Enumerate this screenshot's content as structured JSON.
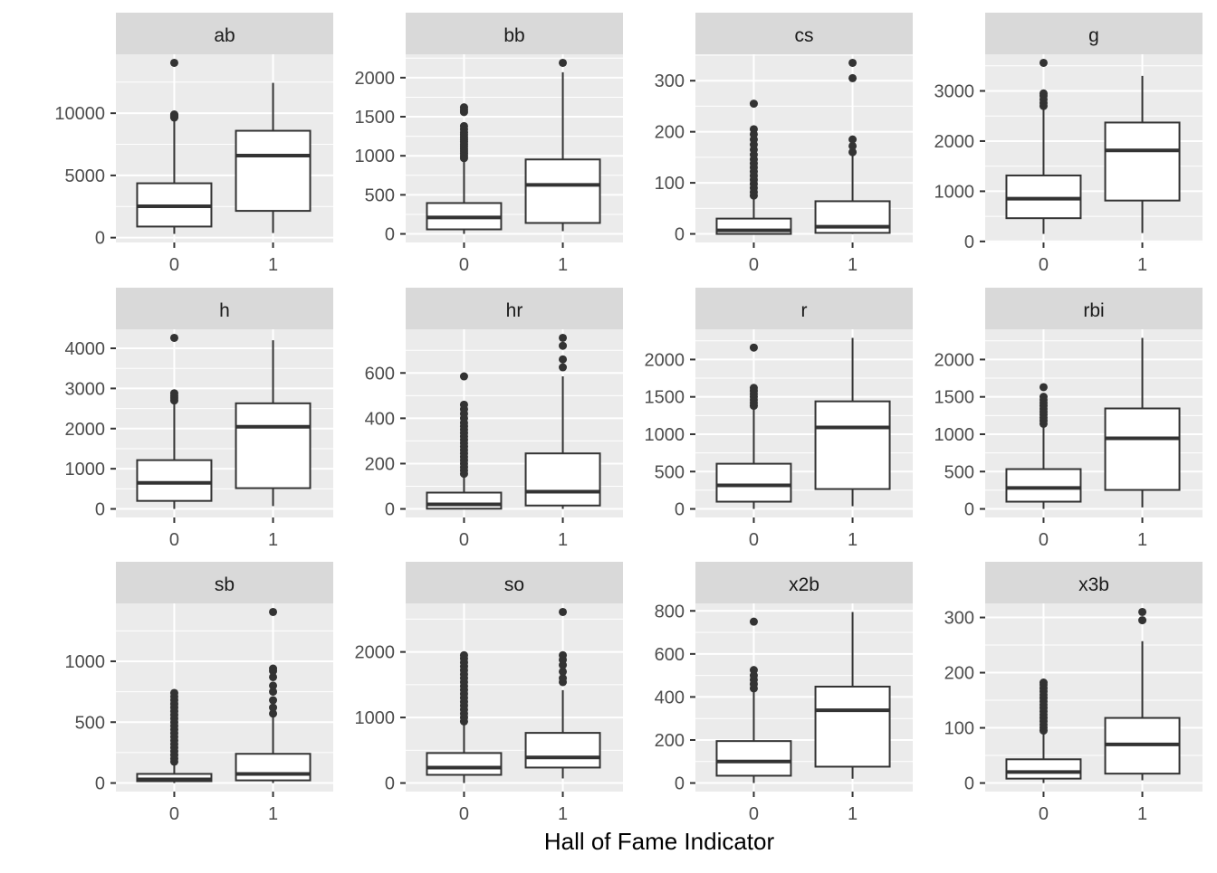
{
  "chart_data": {
    "type": "boxplot",
    "xlabel": "Hall of Fame Indicator",
    "ylabel": "",
    "categories": [
      "0",
      "1"
    ],
    "layout": "facet_wrap 3 rows x 4 columns, free y scales",
    "grid": true,
    "colors": {
      "panel": "#ebebeb",
      "strip": "#d9d9d9",
      "grid": "#ffffff",
      "box": "#333333",
      "axis_text": "#4d4d4d"
    },
    "facets": [
      {
        "name": "ab",
        "ticks": [
          0,
          5000,
          10000
        ],
        "boxes": [
          {
            "x": "0",
            "low": 300,
            "q1": 890,
            "median": 2520,
            "q3": 4370,
            "high": 9500,
            "outliers": [
              9650,
              9700,
              9750,
              9800,
              9850,
              9900,
              14050
            ]
          },
          {
            "x": "1",
            "low": 370,
            "q1": 2150,
            "median": 6590,
            "q3": 8590,
            "high": 12440,
            "outliers": []
          }
        ]
      },
      {
        "name": "bb",
        "ticks": [
          0,
          500,
          1000,
          1500,
          2000
        ],
        "boxes": [
          {
            "x": "0",
            "low": 0,
            "q1": 58,
            "median": 210,
            "q3": 395,
            "high": 960,
            "outliers": [
              970,
              1000,
              1030,
              1060,
              1090,
              1120,
              1150,
              1180,
              1210,
              1240,
              1270,
              1300,
              1340,
              1380,
              1560,
              1590,
              1620
            ]
          },
          {
            "x": "1",
            "low": 35,
            "q1": 140,
            "median": 628,
            "q3": 953,
            "high": 2070,
            "outliers": [
              2190
            ]
          }
        ]
      },
      {
        "name": "cs",
        "ticks": [
          0,
          100,
          200,
          300
        ],
        "boxes": [
          {
            "x": "0",
            "low": 0,
            "q1": 0,
            "median": 7,
            "q3": 30,
            "high": 72,
            "outliers": [
              75,
              82,
              90,
              98,
              106,
              114,
              122,
              130,
              138,
              146,
              155,
              165,
              175,
              185,
              195,
              205,
              255
            ]
          },
          {
            "x": "1",
            "low": 0,
            "q1": 2,
            "median": 14,
            "q3": 64,
            "high": 155,
            "outliers": [
              160,
              172,
              185,
              305,
              335
            ]
          }
        ]
      },
      {
        "name": "g",
        "ticks": [
          0,
          1000,
          2000,
          3000
        ],
        "boxes": [
          {
            "x": "0",
            "low": 150,
            "q1": 463,
            "median": 852,
            "q3": 1315,
            "high": 2650,
            "outliers": [
              2700,
              2760,
              2830,
              2900,
              2950,
              3560
            ]
          },
          {
            "x": "1",
            "low": 167,
            "q1": 815,
            "median": 1815,
            "q3": 2370,
            "high": 3300,
            "outliers": []
          }
        ]
      },
      {
        "name": "h",
        "ticks": [
          0,
          1000,
          2000,
          3000,
          4000
        ],
        "boxes": [
          {
            "x": "0",
            "low": 0,
            "q1": 200,
            "median": 650,
            "q3": 1215,
            "high": 2650,
            "outliers": [
              2700,
              2760,
              2820,
              2880,
              4260
            ]
          },
          {
            "x": "1",
            "low": 70,
            "q1": 517,
            "median": 2045,
            "q3": 2630,
            "high": 4200,
            "outliers": []
          }
        ]
      },
      {
        "name": "hr",
        "ticks": [
          0,
          200,
          400,
          600
        ],
        "boxes": [
          {
            "x": "0",
            "low": 0,
            "q1": 1,
            "median": 20,
            "q3": 72,
            "high": 150,
            "outliers": [
              155,
              170,
              185,
              200,
              215,
              230,
              245,
              260,
              275,
              290,
              305,
              320,
              335,
              350,
              365,
              380,
              400,
              420,
              440,
              460,
              585
            ]
          },
          {
            "x": "1",
            "low": 0,
            "q1": 15,
            "median": 76,
            "q3": 245,
            "high": 585,
            "outliers": [
              625,
              660,
              720,
              755
            ]
          }
        ]
      },
      {
        "name": "r",
        "ticks": [
          0,
          500,
          1000,
          1500,
          2000
        ],
        "boxes": [
          {
            "x": "0",
            "low": 0,
            "q1": 97,
            "median": 315,
            "q3": 605,
            "high": 1360,
            "outliers": [
              1380,
              1420,
              1460,
              1500,
              1540,
              1580,
              1620,
              2160
            ]
          },
          {
            "x": "1",
            "low": 36,
            "q1": 266,
            "median": 1090,
            "q3": 1440,
            "high": 2290,
            "outliers": []
          }
        ]
      },
      {
        "name": "rbi",
        "ticks": [
          0,
          500,
          1000,
          1500,
          2000
        ],
        "boxes": [
          {
            "x": "0",
            "low": 0,
            "q1": 97,
            "median": 280,
            "q3": 533,
            "high": 1120,
            "outliers": [
              1140,
              1180,
              1220,
              1260,
              1300,
              1340,
              1380,
              1420,
              1460,
              1500,
              1630
            ]
          },
          {
            "x": "1",
            "low": 20,
            "q1": 254,
            "median": 945,
            "q3": 1345,
            "high": 2290,
            "outliers": []
          }
        ]
      },
      {
        "name": "sb",
        "ticks": [
          0,
          500,
          1000
        ],
        "boxes": [
          {
            "x": "0",
            "low": 0,
            "q1": 15,
            "median": 30,
            "q3": 75,
            "high": 170,
            "outliers": [
              175,
              200,
              230,
              260,
              290,
              320,
              350,
              380,
              410,
              440,
              470,
              500,
              530,
              560,
              590,
              620,
              650,
              680,
              710,
              740
            ]
          },
          {
            "x": "1",
            "low": 0,
            "q1": 22,
            "median": 75,
            "q3": 240,
            "high": 560,
            "outliers": [
              570,
              620,
              680,
              750,
              800,
              870,
              920,
              940,
              1405
            ]
          }
        ]
      },
      {
        "name": "so",
        "ticks": [
          0,
          1000,
          2000
        ],
        "boxes": [
          {
            "x": "0",
            "low": 0,
            "q1": 125,
            "median": 236,
            "q3": 458,
            "high": 920,
            "outliers": [
              940,
              1000,
              1060,
              1120,
              1180,
              1240,
              1300,
              1360,
              1420,
              1480,
              1540,
              1600,
              1660,
              1720,
              1780,
              1840,
              1900,
              1950
            ]
          },
          {
            "x": "1",
            "low": 70,
            "q1": 236,
            "median": 390,
            "q3": 765,
            "high": 1417,
            "outliers": [
              1540,
              1600,
              1700,
              1800,
              1880,
              1950,
              2610
            ]
          }
        ]
      },
      {
        "name": "x2b",
        "ticks": [
          0,
          200,
          400,
          600,
          800
        ],
        "boxes": [
          {
            "x": "0",
            "low": 0,
            "q1": 34,
            "median": 100,
            "q3": 195,
            "high": 425,
            "outliers": [
              440,
              460,
              480,
              500,
              525,
              750
            ]
          },
          {
            "x": "1",
            "low": 20,
            "q1": 76,
            "median": 338,
            "q3": 448,
            "high": 795,
            "outliers": []
          }
        ]
      },
      {
        "name": "x3b",
        "ticks": [
          0,
          100,
          200,
          300
        ],
        "boxes": [
          {
            "x": "0",
            "low": 0,
            "q1": 8,
            "median": 20,
            "q3": 43,
            "high": 92,
            "outliers": [
              95,
              100,
              106,
              112,
              118,
              124,
              130,
              136,
              142,
              148,
              154,
              160,
              166,
              172,
              178,
              182
            ]
          },
          {
            "x": "1",
            "low": 5,
            "q1": 17,
            "median": 70,
            "q3": 118,
            "high": 257,
            "outliers": [
              295,
              310
            ]
          }
        ]
      }
    ]
  }
}
